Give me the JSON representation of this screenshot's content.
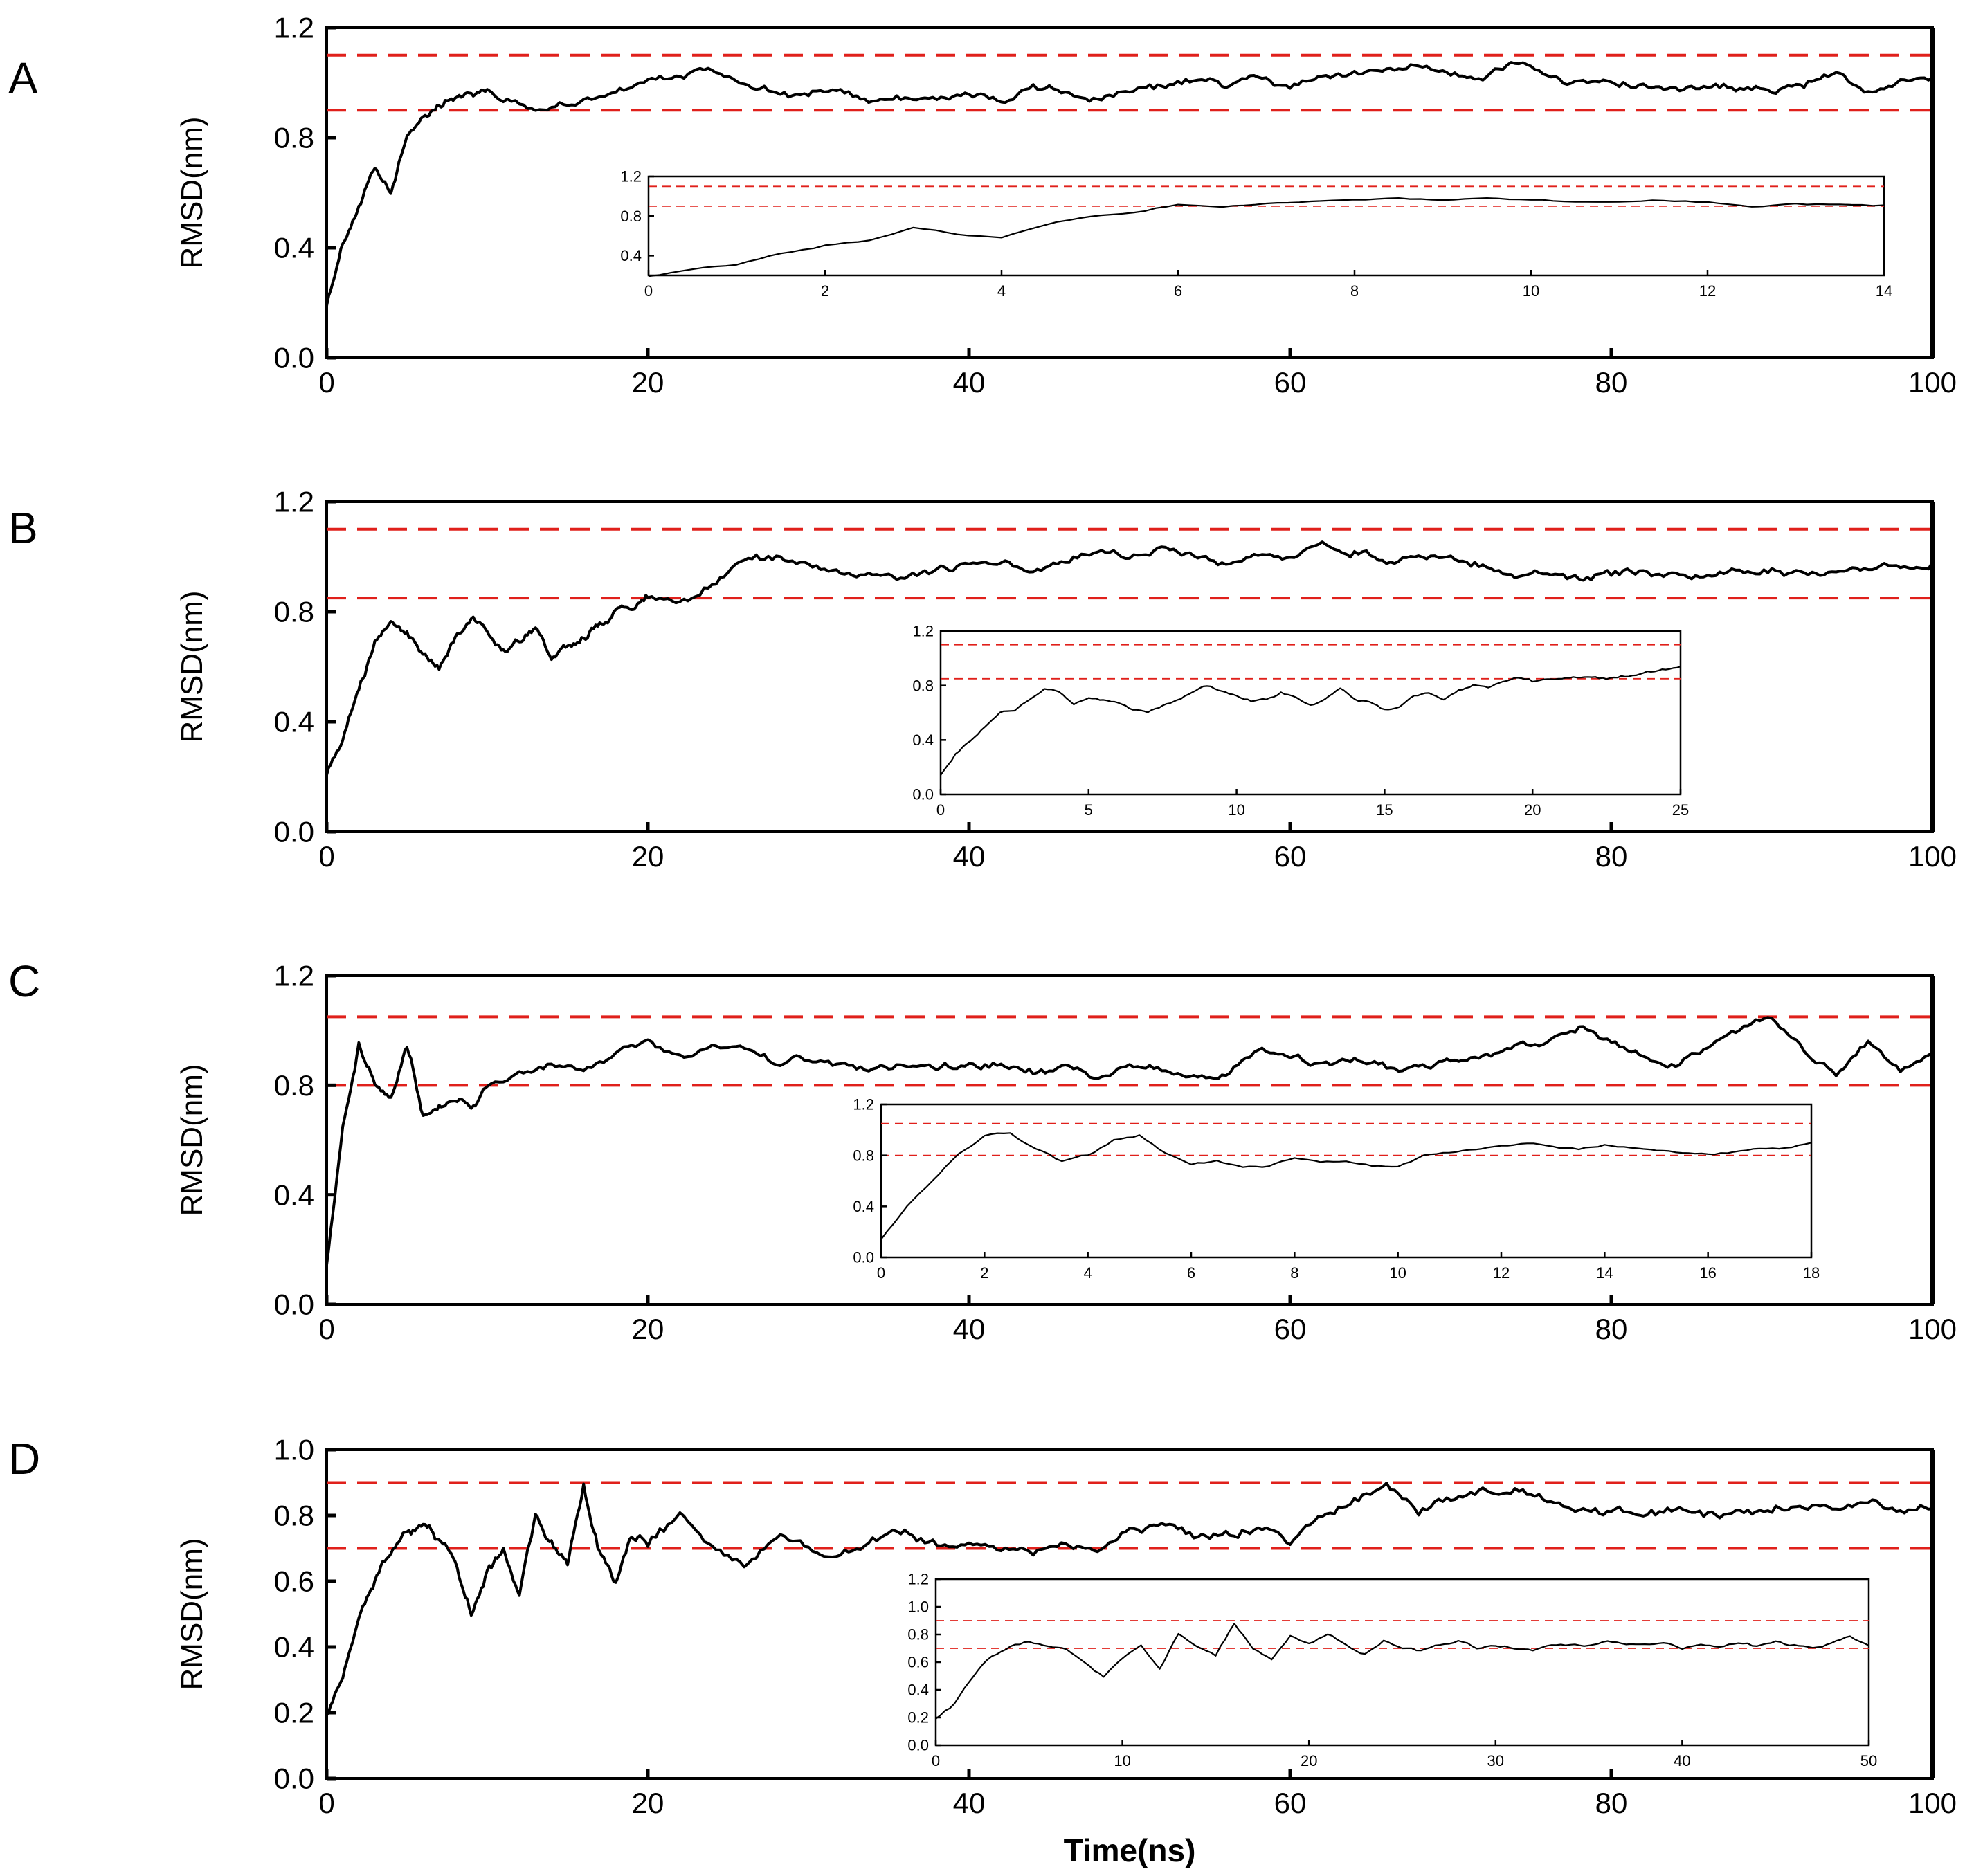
{
  "colors": {
    "trace": "#000000",
    "threshold": "#e0201b",
    "axis": "#000000"
  },
  "x_axis_title": "Time(ns)",
  "chart_data": [
    {
      "panel": "A",
      "type": "line",
      "ylabel": "RMSD(nm)",
      "xlim": [
        0,
        100
      ],
      "ylim": [
        0.0,
        1.2
      ],
      "xticks": [
        "0",
        "20",
        "40",
        "60",
        "80",
        "100"
      ],
      "yticks": [
        "0.0",
        "0.4",
        "0.8",
        "1.2"
      ],
      "thresholds": [
        0.9,
        1.1
      ],
      "series": [
        {
          "x": [
            0,
            1,
            2,
            3,
            4,
            5,
            6,
            7,
            8,
            9,
            10,
            12,
            14,
            16,
            18,
            20,
            22,
            24,
            26,
            28,
            30,
            32,
            34,
            36,
            38,
            40,
            42,
            44,
            46,
            48,
            50,
            52,
            54,
            56,
            58,
            60,
            62,
            64,
            66,
            68,
            70,
            72,
            74,
            76,
            78,
            80,
            82,
            84,
            86,
            88,
            90,
            92,
            94,
            96,
            98,
            100
          ],
          "y": [
            0.2,
            0.42,
            0.55,
            0.68,
            0.6,
            0.8,
            0.88,
            0.92,
            0.95,
            0.97,
            0.97,
            0.92,
            0.9,
            0.94,
            0.97,
            1.0,
            1.02,
            1.05,
            1.0,
            0.97,
            0.95,
            0.97,
            0.93,
            0.95,
            0.94,
            0.96,
            0.93,
            0.98,
            0.96,
            0.94,
            0.97,
            0.98,
            1.01,
            0.99,
            1.02,
            0.98,
            1.02,
            1.03,
            1.05,
            1.07,
            1.04,
            1.01,
            1.08,
            1.03,
            1.0,
            1.0,
            0.99,
            0.97,
            0.98,
            0.98,
            0.97,
            1.0,
            1.03,
            0.96,
            1.02,
            1.02
          ]
        }
      ],
      "inset": {
        "xlim": [
          0,
          14
        ],
        "ylim": [
          0.2,
          1.2
        ],
        "xticks": [
          "0",
          "2",
          "4",
          "6",
          "8",
          "10",
          "12",
          "14"
        ],
        "yticks": [
          "0.4",
          "0.8",
          "1.2"
        ],
        "thresholds": [
          0.9,
          1.1
        ],
        "series": [
          {
            "x": [
              0,
              0.5,
              1,
              1.5,
              2,
              2.5,
              3,
              3.5,
              4,
              4.5,
              5,
              5.5,
              6,
              6.5,
              7,
              7.5,
              8,
              8.5,
              9,
              9.5,
              10,
              10.5,
              11,
              11.5,
              12,
              12.5,
              13,
              13.5,
              14
            ],
            "y": [
              0.2,
              0.26,
              0.3,
              0.42,
              0.5,
              0.55,
              0.68,
              0.62,
              0.58,
              0.72,
              0.8,
              0.84,
              0.92,
              0.9,
              0.93,
              0.95,
              0.96,
              0.98,
              0.97,
              0.98,
              0.97,
              0.95,
              0.94,
              0.96,
              0.95,
              0.9,
              0.93,
              0.92,
              0.91
            ]
          }
        ]
      }
    },
    {
      "panel": "B",
      "type": "line",
      "ylabel": "RMSD(nm)",
      "xlim": [
        0,
        100
      ],
      "ylim": [
        0.0,
        1.2
      ],
      "xticks": [
        "0",
        "20",
        "40",
        "60",
        "80",
        "100"
      ],
      "yticks": [
        "0.0",
        "0.4",
        "0.8",
        "1.2"
      ],
      "thresholds": [
        0.85,
        1.1
      ],
      "series": [
        {
          "x": [
            0,
            1,
            2,
            3,
            4,
            5,
            6,
            7,
            8,
            9,
            10,
            11,
            12,
            13,
            14,
            15,
            16,
            17,
            18,
            19,
            20,
            22,
            24,
            26,
            28,
            30,
            32,
            34,
            36,
            38,
            40,
            42,
            44,
            46,
            48,
            50,
            52,
            54,
            56,
            58,
            60,
            62,
            64,
            66,
            68,
            70,
            72,
            74,
            76,
            78,
            80,
            82,
            84,
            86,
            88,
            90,
            92,
            94,
            96,
            98,
            100
          ],
          "y": [
            0.22,
            0.35,
            0.52,
            0.68,
            0.78,
            0.72,
            0.65,
            0.6,
            0.7,
            0.78,
            0.72,
            0.65,
            0.7,
            0.75,
            0.62,
            0.68,
            0.7,
            0.75,
            0.8,
            0.82,
            0.85,
            0.84,
            0.9,
            0.98,
            1.0,
            0.97,
            0.95,
            0.93,
            0.92,
            0.95,
            0.97,
            0.98,
            0.95,
            0.98,
            1.03,
            1.0,
            1.02,
            1.0,
            0.98,
            1.02,
            1.0,
            1.05,
            1.02,
            0.98,
            1.0,
            0.99,
            0.97,
            0.93,
            0.94,
            0.92,
            0.93,
            0.95,
            0.94,
            0.93,
            0.94,
            0.95,
            0.94,
            0.95,
            0.96,
            0.96,
            0.98
          ]
        }
      ],
      "inset": {
        "xlim": [
          0,
          25
        ],
        "ylim": [
          0.0,
          1.2
        ],
        "xticks": [
          "0",
          "5",
          "10",
          "15",
          "20",
          "25"
        ],
        "yticks": [
          "0.0",
          "0.4",
          "0.8",
          "1.2"
        ],
        "thresholds": [
          0.85,
          1.1
        ],
        "series": [
          {
            "x": [
              0,
              0.5,
              1,
              1.5,
              2,
              2.5,
              3,
              3.5,
              4,
              4.5,
              5,
              5.5,
              6,
              6.5,
              7,
              7.5,
              8,
              8.5,
              9,
              9.5,
              10,
              10.5,
              11,
              11.5,
              12,
              12.5,
              13,
              13.5,
              14,
              14.5,
              15,
              15.5,
              16,
              16.5,
              17,
              17.5,
              18,
              18.5,
              19,
              19.5,
              20,
              20.5,
              21,
              21.5,
              22,
              22.5,
              23,
              23.5,
              24,
              24.5,
              25
            ],
            "y": [
              0.15,
              0.3,
              0.4,
              0.5,
              0.6,
              0.62,
              0.7,
              0.78,
              0.75,
              0.65,
              0.72,
              0.7,
              0.68,
              0.62,
              0.6,
              0.65,
              0.7,
              0.75,
              0.8,
              0.76,
              0.72,
              0.68,
              0.7,
              0.75,
              0.72,
              0.65,
              0.7,
              0.78,
              0.7,
              0.68,
              0.62,
              0.65,
              0.72,
              0.75,
              0.7,
              0.76,
              0.8,
              0.78,
              0.82,
              0.85,
              0.83,
              0.85,
              0.84,
              0.86,
              0.86,
              0.85,
              0.87,
              0.88,
              0.9,
              0.92,
              0.94
            ]
          }
        ]
      }
    },
    {
      "panel": "C",
      "type": "line",
      "ylabel": "RMSD(nm)",
      "xlim": [
        0,
        100
      ],
      "ylim": [
        0.0,
        1.2
      ],
      "xticks": [
        "0",
        "20",
        "40",
        "60",
        "80",
        "100"
      ],
      "yticks": [
        "0.0",
        "0.4",
        "0.8",
        "1.2"
      ],
      "thresholds": [
        0.8,
        1.05
      ],
      "series": [
        {
          "x": [
            0,
            1,
            2,
            3,
            4,
            5,
            6,
            7,
            8,
            9,
            10,
            12,
            14,
            16,
            18,
            20,
            22,
            24,
            26,
            28,
            30,
            32,
            34,
            36,
            38,
            40,
            42,
            44,
            46,
            48,
            50,
            52,
            54,
            56,
            58,
            60,
            62,
            64,
            66,
            68,
            70,
            72,
            74,
            76,
            78,
            80,
            82,
            84,
            86,
            88,
            90,
            92,
            94,
            96,
            98,
            100
          ],
          "y": [
            0.15,
            0.65,
            0.95,
            0.8,
            0.75,
            0.95,
            0.7,
            0.72,
            0.75,
            0.72,
            0.78,
            0.85,
            0.88,
            0.85,
            0.92,
            0.95,
            0.9,
            0.94,
            0.93,
            0.88,
            0.9,
            0.87,
            0.85,
            0.87,
            0.86,
            0.88,
            0.87,
            0.85,
            0.86,
            0.84,
            0.86,
            0.85,
            0.84,
            0.83,
            0.93,
            0.9,
            0.88,
            0.9,
            0.87,
            0.86,
            0.88,
            0.9,
            0.94,
            0.95,
            1.02,
            0.95,
            0.9,
            0.88,
            0.95,
            1.0,
            1.05,
            0.92,
            0.85,
            0.95,
            0.85,
            0.92
          ]
        }
      ],
      "inset": {
        "xlim": [
          0,
          18
        ],
        "ylim": [
          0.0,
          1.2
        ],
        "xticks": [
          "0",
          "2",
          "4",
          "6",
          "8",
          "10",
          "12",
          "14",
          "16",
          "18"
        ],
        "yticks": [
          "0.0",
          "0.4",
          "0.8",
          "1.2"
        ],
        "thresholds": [
          0.8,
          1.05
        ],
        "series": [
          {
            "x": [
              0,
              0.5,
              1,
              1.5,
              2,
              2.5,
              3,
              3.5,
              4,
              4.5,
              5,
              5.5,
              6,
              6.5,
              7,
              7.5,
              8,
              8.5,
              9,
              9.5,
              10,
              10.5,
              11,
              11.5,
              12,
              12.5,
              13,
              13.5,
              14,
              14.5,
              15,
              15.5,
              16,
              16.5,
              17,
              17.5,
              18
            ],
            "y": [
              0.15,
              0.4,
              0.6,
              0.82,
              0.95,
              0.98,
              0.85,
              0.75,
              0.8,
              0.92,
              0.95,
              0.82,
              0.72,
              0.75,
              0.7,
              0.72,
              0.78,
              0.75,
              0.76,
              0.72,
              0.7,
              0.8,
              0.82,
              0.85,
              0.88,
              0.9,
              0.87,
              0.85,
              0.88,
              0.86,
              0.84,
              0.82,
              0.8,
              0.82,
              0.85,
              0.86,
              0.9
            ]
          }
        ]
      }
    },
    {
      "panel": "D",
      "type": "line",
      "ylabel": "RMSD(nm)",
      "xlabel": "Time(ns)",
      "xlim": [
        0,
        100
      ],
      "ylim": [
        0.0,
        1.0
      ],
      "xticks": [
        "0",
        "20",
        "40",
        "60",
        "80",
        "100"
      ],
      "yticks": [
        "0.0",
        "0.2",
        "0.4",
        "0.6",
        "0.8",
        "1.0"
      ],
      "thresholds": [
        0.7,
        0.9
      ],
      "series": [
        {
          "x": [
            0,
            1,
            2,
            3,
            4,
            5,
            6,
            7,
            8,
            9,
            10,
            11,
            12,
            13,
            14,
            15,
            16,
            17,
            18,
            19,
            20,
            22,
            24,
            26,
            28,
            30,
            32,
            34,
            36,
            38,
            40,
            42,
            44,
            46,
            48,
            50,
            52,
            54,
            56,
            58,
            60,
            62,
            64,
            66,
            68,
            70,
            72,
            74,
            76,
            78,
            80,
            82,
            84,
            86,
            88,
            90,
            92,
            94,
            96,
            98,
            100
          ],
          "y": [
            0.2,
            0.3,
            0.5,
            0.6,
            0.68,
            0.75,
            0.78,
            0.72,
            0.65,
            0.5,
            0.62,
            0.7,
            0.55,
            0.8,
            0.72,
            0.65,
            0.88,
            0.7,
            0.6,
            0.75,
            0.72,
            0.8,
            0.7,
            0.65,
            0.75,
            0.7,
            0.68,
            0.72,
            0.75,
            0.7,
            0.72,
            0.7,
            0.68,
            0.73,
            0.7,
            0.75,
            0.78,
            0.75,
            0.74,
            0.76,
            0.72,
            0.8,
            0.85,
            0.88,
            0.82,
            0.85,
            0.87,
            0.88,
            0.85,
            0.82,
            0.8,
            0.8,
            0.82,
            0.8,
            0.81,
            0.83,
            0.82,
            0.81,
            0.84,
            0.82,
            0.82
          ]
        }
      ],
      "inset": {
        "xlim": [
          0,
          50
        ],
        "ylim": [
          0.0,
          1.2
        ],
        "xticks": [
          "0",
          "10",
          "20",
          "30",
          "40",
          "50"
        ],
        "yticks": [
          "0.0",
          "0.2",
          "0.4",
          "0.6",
          "0.8",
          "1.0",
          "1.2"
        ],
        "thresholds": [
          0.7,
          0.9
        ],
        "series": [
          {
            "x": [
              0,
              1,
              2,
              3,
              4,
              5,
              6,
              7,
              8,
              9,
              10,
              11,
              12,
              13,
              14,
              15,
              16,
              17,
              18,
              19,
              20,
              21,
              22,
              23,
              24,
              25,
              26,
              27,
              28,
              29,
              30,
              31,
              32,
              33,
              34,
              35,
              36,
              37,
              38,
              39,
              40,
              41,
              42,
              43,
              44,
              45,
              46,
              47,
              48,
              49,
              50
            ],
            "y": [
              0.2,
              0.3,
              0.5,
              0.65,
              0.72,
              0.75,
              0.72,
              0.7,
              0.6,
              0.5,
              0.62,
              0.72,
              0.55,
              0.8,
              0.72,
              0.65,
              0.88,
              0.7,
              0.62,
              0.78,
              0.72,
              0.8,
              0.72,
              0.66,
              0.76,
              0.7,
              0.68,
              0.72,
              0.75,
              0.7,
              0.72,
              0.7,
              0.68,
              0.73,
              0.72,
              0.72,
              0.75,
              0.73,
              0.72,
              0.74,
              0.7,
              0.72,
              0.71,
              0.74,
              0.72,
              0.76,
              0.72,
              0.7,
              0.74,
              0.78,
              0.72
            ]
          }
        ]
      }
    }
  ]
}
